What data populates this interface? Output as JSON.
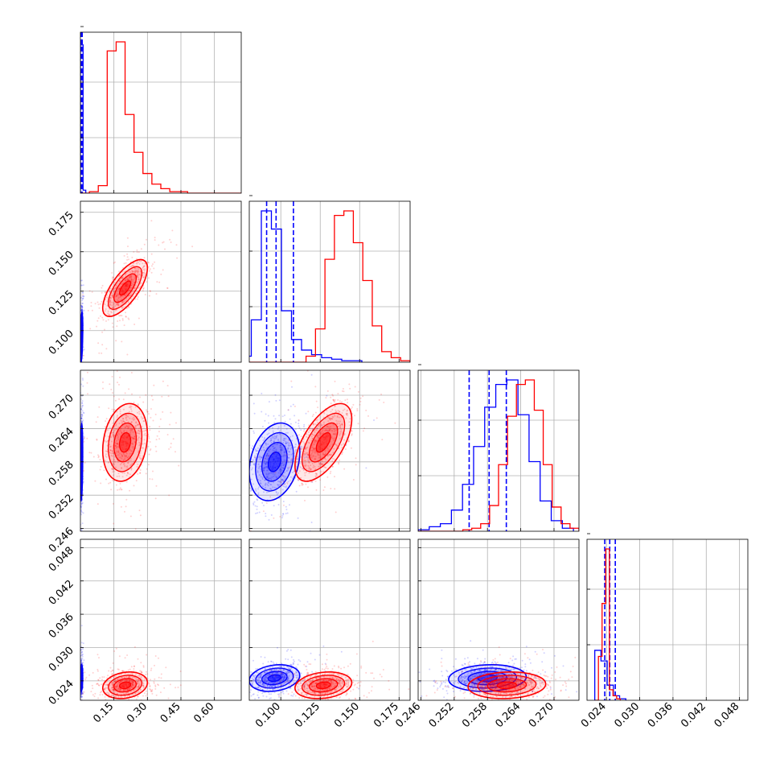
{
  "colors": {
    "blue": "#0000ff",
    "red": "#ff0000",
    "grid": "#b0b0b0",
    "axis": "#000000"
  },
  "ticks": {
    "p0": [
      "0.15",
      "0.30",
      "0.45",
      "0.60"
    ],
    "p1": [
      "0.100",
      "0.125",
      "0.150",
      "0.175"
    ],
    "p2": [
      "0.246",
      "0.252",
      "0.258",
      "0.264",
      "0.270"
    ],
    "p3": [
      "0.024",
      "0.030",
      "0.036",
      "0.042",
      "0.048"
    ]
  },
  "chart_data": {
    "type": "corner",
    "parameters": [
      "",
      "",
      "",
      ""
    ],
    "ranges": [
      [
        0.0,
        0.72
      ],
      [
        0.08,
        0.182
      ],
      [
        0.2455,
        0.2745
      ],
      [
        0.0205,
        0.0495
      ]
    ],
    "grid": true,
    "series": [
      {
        "color": "blue",
        "means": [
          0.005,
          0.096,
          0.258,
          0.0245
        ],
        "sds": [
          0.002,
          0.008,
          0.0035,
          0.0012
        ],
        "quantiles": [
          [
            0.003,
            0.005,
            0.008
          ],
          [
            0.091,
            0.097,
            0.108
          ],
          [
            0.2547,
            0.2583,
            0.2614
          ],
          [
            0.0237,
            0.0246,
            0.0256
          ]
        ],
        "correlations": [
          [
            0,
            1,
            0.5
          ],
          [
            0,
            2,
            0.3
          ],
          [
            0,
            3,
            0.2
          ],
          [
            1,
            2,
            0.25
          ],
          [
            1,
            3,
            0.2
          ],
          [
            2,
            3,
            0.1
          ]
        ],
        "histograms": [
          [
            98,
            2
          ],
          [
            4,
            28,
            100,
            88,
            34,
            15,
            8,
            5,
            3,
            2,
            1,
            1
          ],
          [
            1,
            3,
            5,
            14,
            31,
            56,
            82,
            97,
            100,
            77,
            46,
            20,
            7,
            2
          ],
          [
            33,
            26,
            10,
            3,
            1
          ]
        ]
      },
      {
        "color": "red",
        "means": [
          0.2,
          0.127,
          0.2615,
          0.0232
        ],
        "sds": [
          0.05,
          0.009,
          0.0035,
          0.0012
        ],
        "quantiles": null,
        "correlations": [
          [
            0,
            1,
            0.7
          ],
          [
            0,
            2,
            0.2
          ],
          [
            0,
            3,
            0.2
          ],
          [
            1,
            2,
            0.6
          ],
          [
            1,
            3,
            0.2
          ],
          [
            2,
            3,
            0.1
          ]
        ],
        "histograms": [
          [
            0,
            1,
            5,
            94,
            100,
            52,
            27,
            13,
            6,
            3,
            1,
            1,
            0,
            0,
            0,
            0,
            0,
            0
          ],
          [
            0,
            0,
            0,
            0,
            0,
            0,
            4,
            22,
            68,
            97,
            100,
            79,
            54,
            24,
            7,
            3,
            1
          ],
          [
            0,
            0,
            0,
            0,
            0,
            1,
            2,
            5,
            17,
            44,
            76,
            97,
            100,
            80,
            44,
            16,
            5,
            2
          ],
          [
            0,
            29,
            64,
            100,
            7,
            3,
            1
          ]
        ]
      }
    ]
  }
}
